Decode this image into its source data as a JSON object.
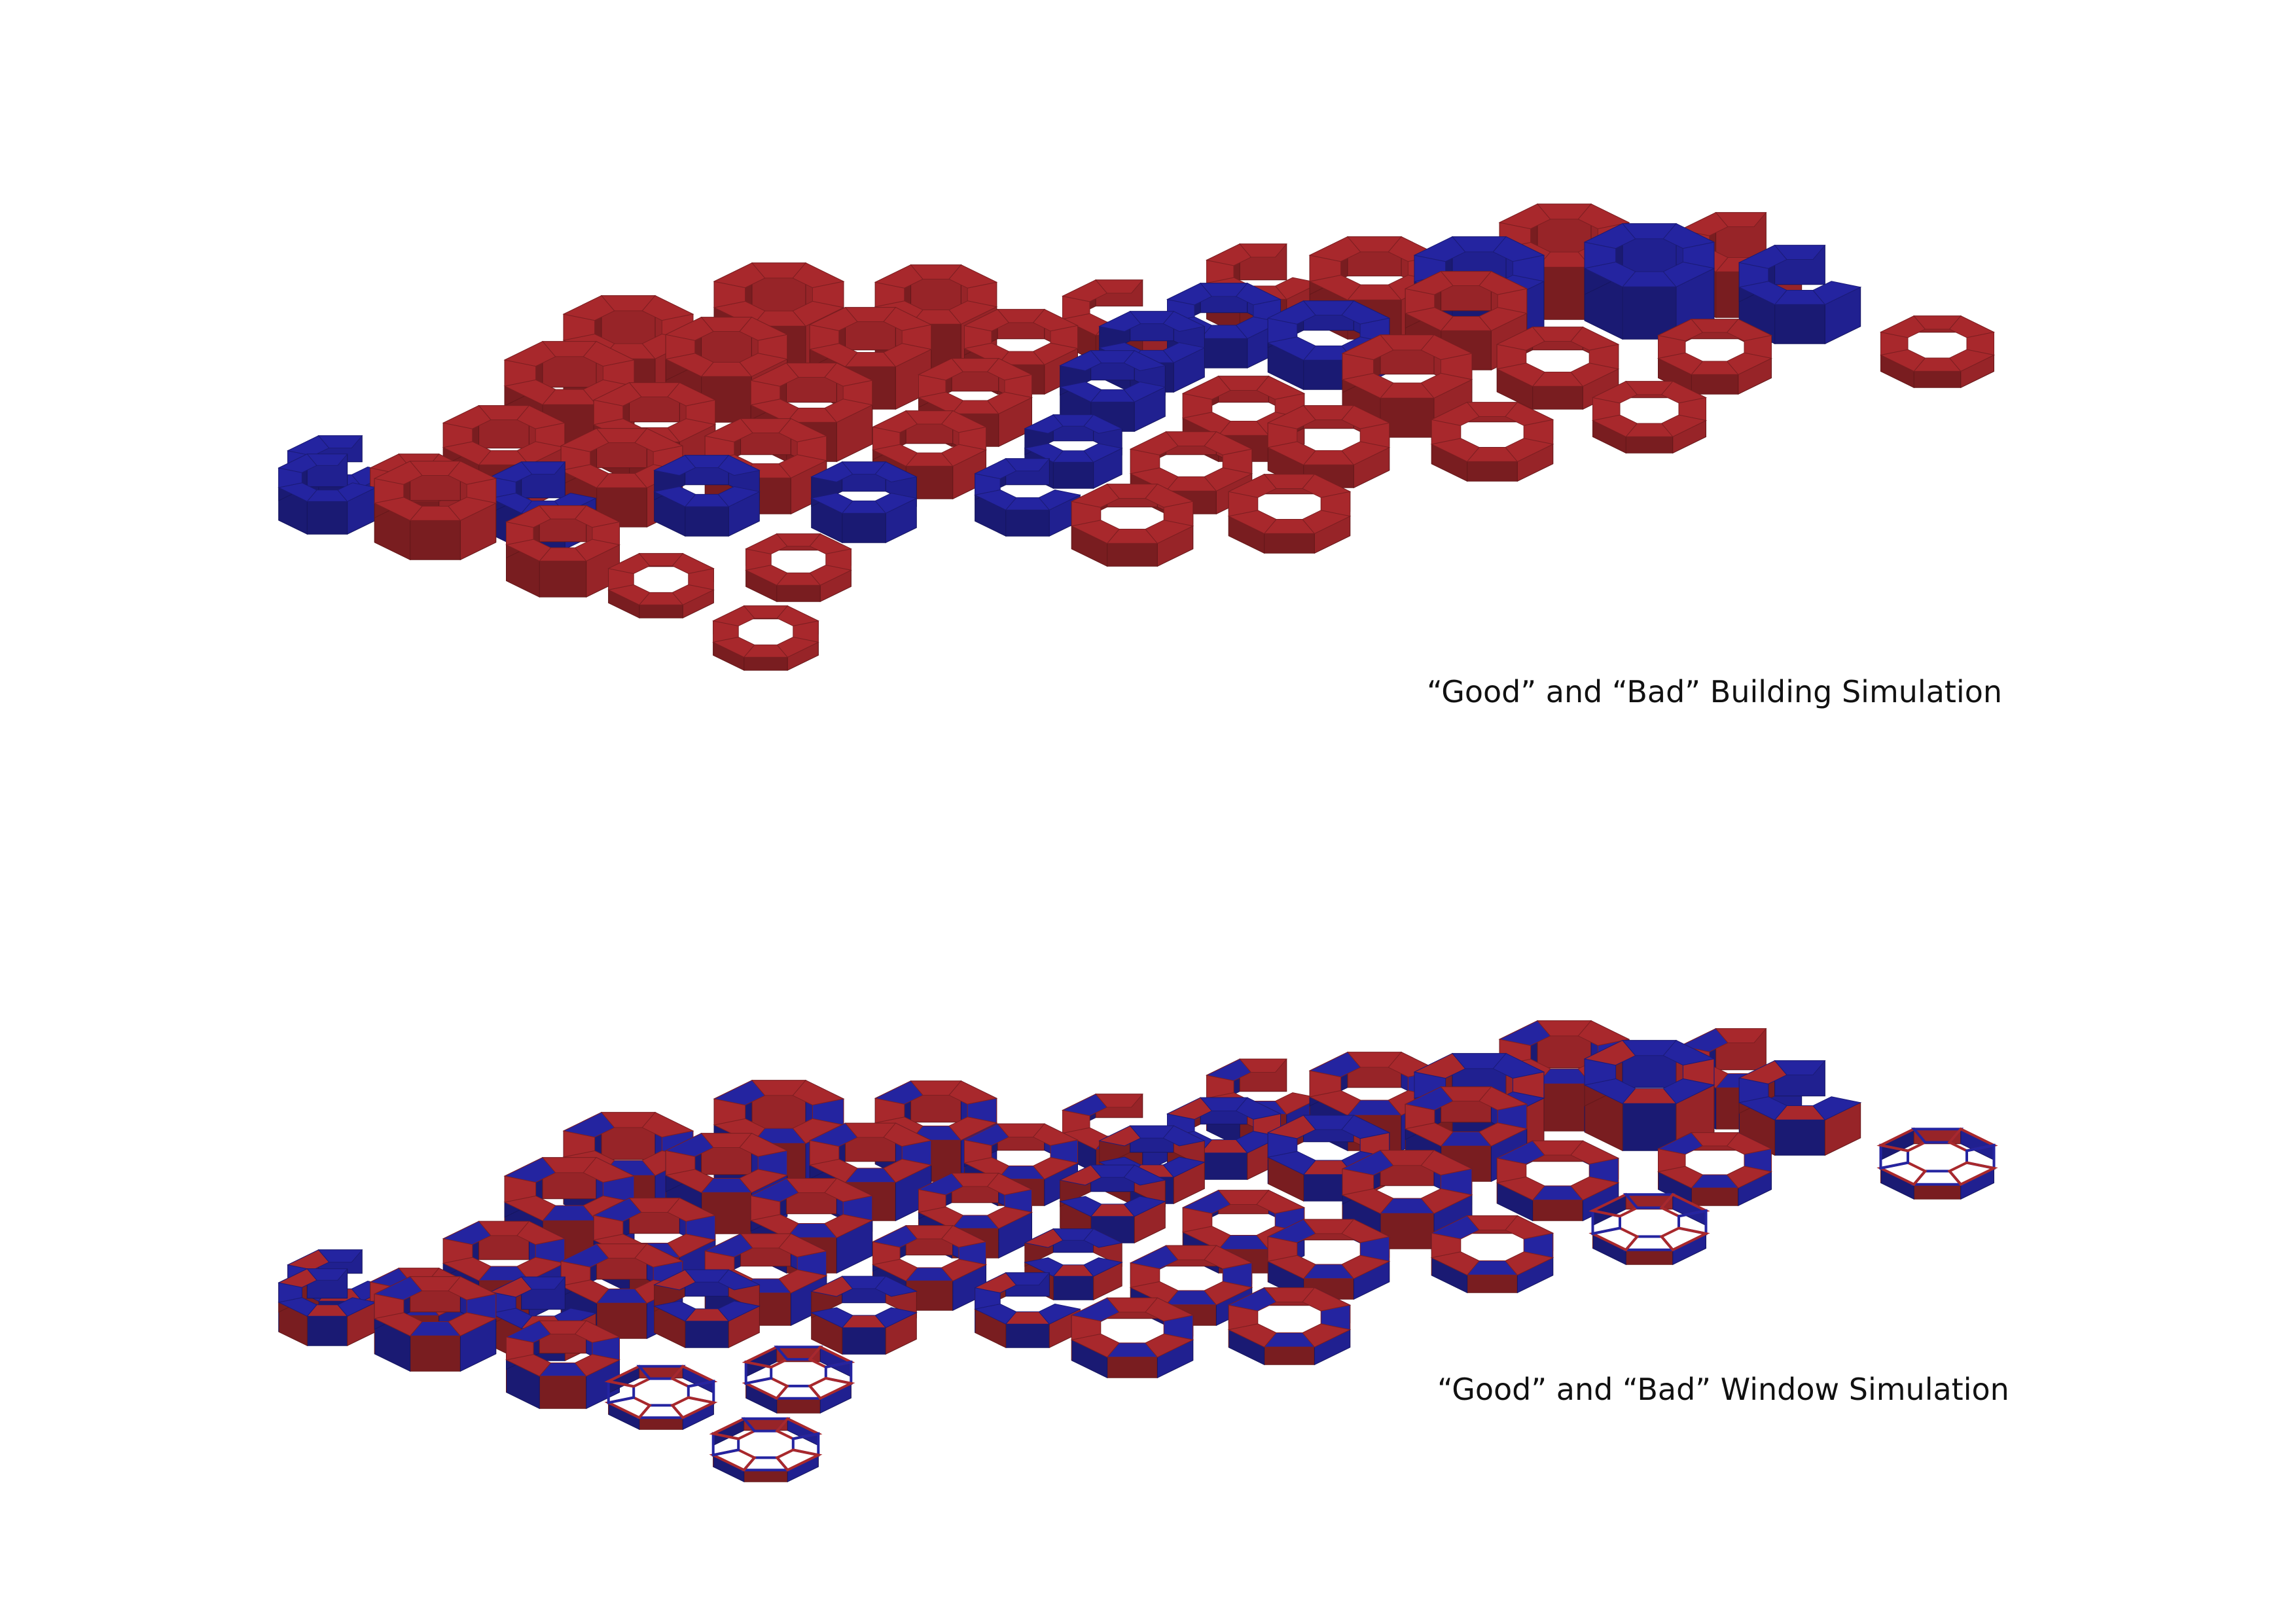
{
  "captions": {
    "building": "“Good” and “Bad” Building Simulation",
    "window": "“Good” and “Bad” Window Simulation"
  },
  "colors": {
    "bad": "#a8282c",
    "good": "#2424a0",
    "bad_dark": "#7c1a1e",
    "good_dark": "#181870",
    "background": "#ffffff"
  },
  "legend_semantics": {
    "red": "bad",
    "blue": "good"
  }
}
